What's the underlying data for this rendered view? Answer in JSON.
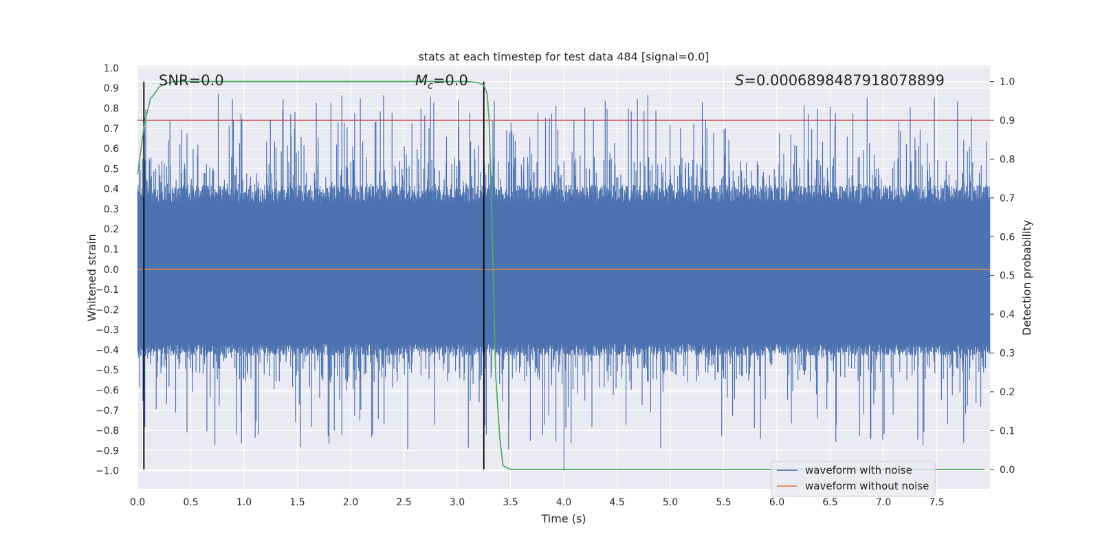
{
  "chart_data": {
    "type": "line",
    "title": "stats at each timestep for test data 484 [signal=0.0]",
    "xlabel": "Time (s)",
    "ylabel": "Whitened strain",
    "y2label": "Detection probability",
    "xlim": [
      0.0,
      8.0
    ],
    "ylim": [
      -1.09,
      1.01
    ],
    "y2lim": [
      -0.05,
      1.04
    ],
    "xticks": [
      "0.0",
      "0.5",
      "1.0",
      "1.5",
      "2.0",
      "2.5",
      "3.0",
      "3.5",
      "4.0",
      "4.5",
      "5.0",
      "5.5",
      "6.0",
      "6.5",
      "7.0",
      "7.5"
    ],
    "xtick_values": [
      0.0,
      0.5,
      1.0,
      1.5,
      2.0,
      2.5,
      3.0,
      3.5,
      4.0,
      4.5,
      5.0,
      5.5,
      6.0,
      6.5,
      7.0,
      7.5
    ],
    "yticks": [
      "1.0",
      "0.9",
      "0.8",
      "0.7",
      "0.6",
      "0.5",
      "0.4",
      "0.3",
      "0.2",
      "0.1",
      "0.0",
      "−0.1",
      "−0.2",
      "−0.3",
      "−0.4",
      "−0.5",
      "−0.6",
      "−0.7",
      "−0.8",
      "−0.9",
      "−1.0"
    ],
    "ytick_values": [
      1.0,
      0.9,
      0.8,
      0.7,
      0.6,
      0.5,
      0.4,
      0.3,
      0.2,
      0.1,
      0.0,
      -0.1,
      -0.2,
      -0.3,
      -0.4,
      -0.5,
      -0.6,
      -0.7,
      -0.8,
      -0.9,
      -1.0
    ],
    "y2ticks": [
      "1.0",
      "0.9",
      "0.8",
      "0.7",
      "0.6",
      "0.5",
      "0.4",
      "0.3",
      "0.2",
      "0.1",
      "0.0"
    ],
    "y2tick_values": [
      1.0,
      0.9,
      0.8,
      0.7,
      0.6,
      0.5,
      0.4,
      0.3,
      0.2,
      0.1,
      0.0
    ],
    "series": [
      {
        "name": "waveform with noise",
        "color": "#4c72b0",
        "kind": "noise",
        "band_low": -0.37,
        "band_high": 0.33,
        "peak_max": 0.92,
        "peak_min": -1.0
      },
      {
        "name": "waveform without noise",
        "color": "#dd8452",
        "kind": "constant",
        "value": 0.0
      },
      {
        "name": "detection probability",
        "color": "#55a868",
        "axis": "y2",
        "x": [
          0.0,
          0.04,
          0.07,
          0.1,
          0.12,
          0.15,
          0.2,
          0.25,
          0.3,
          0.35,
          0.4,
          0.5,
          1.0,
          2.0,
          3.0,
          3.1,
          3.2,
          3.25,
          3.28,
          3.3,
          3.33,
          3.36,
          3.4,
          3.43,
          3.46,
          3.5,
          3.6,
          4.0,
          5.0,
          6.0,
          7.0,
          7.95
        ],
        "values": [
          0.76,
          0.84,
          0.9,
          0.93,
          0.955,
          0.965,
          0.985,
          0.993,
          0.998,
          1.0,
          1.0,
          1.0,
          1.0,
          1.0,
          1.0,
          1.0,
          0.997,
          0.99,
          0.97,
          0.9,
          0.6,
          0.25,
          0.08,
          0.01,
          0.005,
          0.0,
          0.0,
          0.0,
          0.0,
          0.0,
          0.0,
          0.0
        ]
      }
    ],
    "hlines": [
      {
        "name": "threshold",
        "axis": "y2",
        "value": 0.9,
        "color": "#c44e52"
      }
    ],
    "vlines": [
      {
        "name": "start",
        "x": 0.06,
        "axis": "y2",
        "from": 0.0,
        "to": 1.0,
        "color": "#000000"
      },
      {
        "name": "end",
        "x": 3.25,
        "axis": "y2",
        "from": 0.0,
        "to": 1.0,
        "color": "#000000"
      }
    ],
    "annotations": {
      "snr": "SNR=0.0",
      "mc_symbol": "M",
      "mc_sub": "c",
      "mc_value": "=0.0",
      "s_symbol": "S",
      "s_value": "=0.0006898487918078899"
    },
    "legend": {
      "placement": "lower-right",
      "labels": [
        "waveform with noise",
        "waveform without noise"
      ]
    },
    "grid": true
  }
}
